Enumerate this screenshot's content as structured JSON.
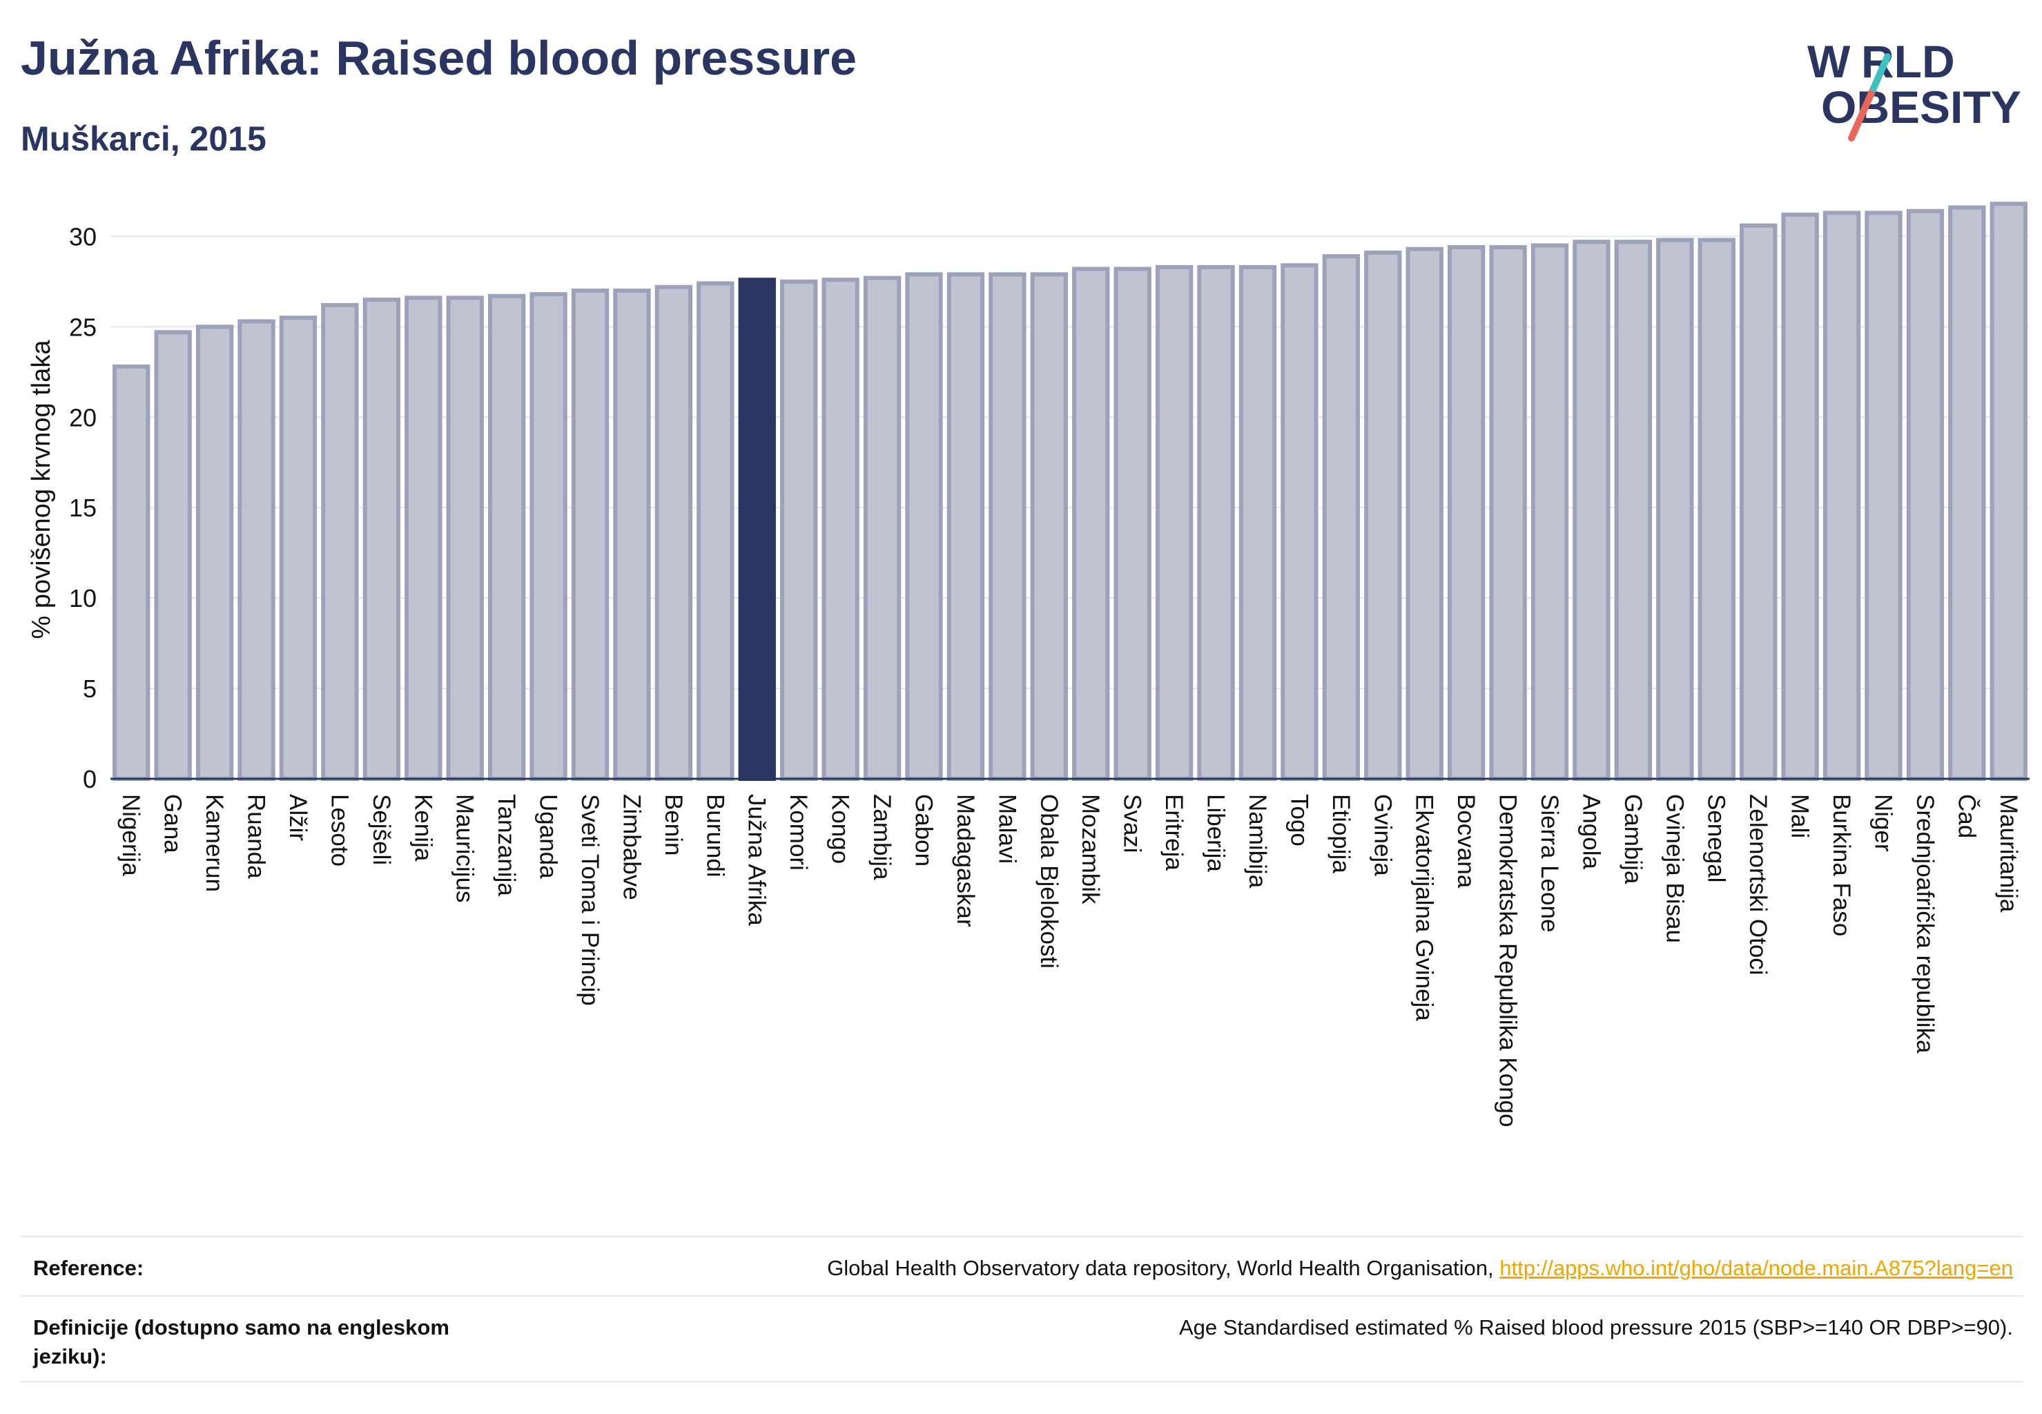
{
  "header": {
    "title": "Južna Afrika: Raised blood pressure",
    "subtitle": "Muškarci, 2015"
  },
  "logo": {
    "line1": "W RLD",
    "line2": "OBESITY",
    "text": "WORLD OBESITY",
    "colors": {
      "text": "#2b3561",
      "slash_top": "#3fc1c0",
      "slash_bottom": "#e8665a"
    }
  },
  "chart_data": {
    "type": "bar",
    "title": "Južna Afrika: Raised blood pressure",
    "subtitle": "Muškarci, 2015",
    "ylabel": "% povišenog krvnog tlaka",
    "xlabel": "",
    "ylim": [
      0,
      32
    ],
    "yticks": [
      0,
      5,
      10,
      15,
      20,
      25,
      30
    ],
    "grid": true,
    "highlight": "Južna Afrika",
    "colors": {
      "bar": "#c0c3d0",
      "bar_edge": "#9da2bb",
      "highlight": "#2b3561",
      "grid": "#e4e6ee"
    },
    "categories": [
      "Nigerija",
      "Gana",
      "Kamerun",
      "Ruanda",
      "Alžir",
      "Lesoto",
      "Sejšeli",
      "Kenija",
      "Mauricijus",
      "Tanzanija",
      "Uganda",
      "Sveti Toma i Princip",
      "Zimbabve",
      "Benin",
      "Burundi",
      "Južna Afrika",
      "Komori",
      "Kongo",
      "Zambija",
      "Gabon",
      "Madagaskar",
      "Malavi",
      "Obala Bjelokosti",
      "Mozambik",
      "Svazi",
      "Eritreja",
      "Liberija",
      "Namibija",
      "Togo",
      "Etiopija",
      "Gvineja",
      "Ekvatorijalna Gvineja",
      "Bocvana",
      "Demokratska Republika Kongo",
      "Sierra Leone",
      "Angola",
      "Gambija",
      "Gvineja Bisau",
      "Senegal",
      "Zelenortski Otoci",
      "Mali",
      "Burkina Faso",
      "Niger",
      "Srednjoafrička republika",
      "Čad",
      "Mauritanija"
    ],
    "values": [
      22.8,
      24.7,
      25.0,
      25.3,
      25.5,
      26.2,
      26.5,
      26.6,
      26.6,
      26.7,
      26.8,
      27.0,
      27.0,
      27.2,
      27.4,
      27.6,
      27.5,
      27.6,
      27.7,
      27.9,
      27.9,
      27.9,
      27.9,
      28.2,
      28.2,
      28.3,
      28.3,
      28.3,
      28.4,
      28.9,
      29.1,
      29.3,
      29.4,
      29.4,
      29.5,
      29.7,
      29.7,
      29.8,
      29.8,
      30.6,
      31.2,
      31.3,
      31.3,
      31.4,
      31.6,
      31.8
    ]
  },
  "reference": {
    "label": "Reference:",
    "text": "Global Health Observatory data repository, World Health Organisation,",
    "link": "http://apps.who.int/gho/data/node.main.A875?lang=en"
  },
  "definition": {
    "label": "Definicije (dostupno samo na engleskom jeziku):",
    "text": "Age Standardised estimated % Raised blood pressure 2015 (SBP>=140 OR DBP>=90)."
  }
}
